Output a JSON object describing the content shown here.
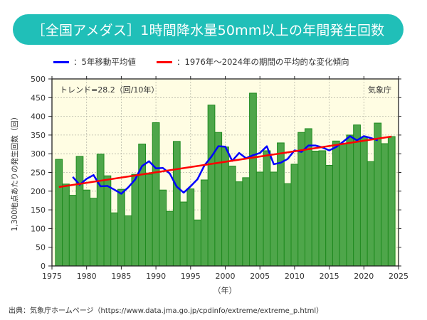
{
  "header": {
    "title": "［全国アメダス］1時間降水量50mm以上の年間発生回数"
  },
  "legend": {
    "moving_average": {
      "label": "：5年移動平均値",
      "color": "#0000ff"
    },
    "trend": {
      "label": "：1976年～2024年の期間の平均的な変化傾向",
      "color": "#ff0000"
    }
  },
  "source": "出典：気象庁ホームページ（https://www.data.jma.go.jp/cpdinfo/extreme/extreme_p.html）",
  "chart_data": {
    "type": "bar",
    "title": "［全国アメダス］1時間降水量50mm以上の年間発生回数",
    "xlabel": "（年）",
    "ylabel": "1,300地点あたりの発生回数（回）",
    "xlim": [
      1975,
      2025
    ],
    "ylim": [
      0,
      500
    ],
    "xticks": [
      "1975",
      "1980",
      "1985",
      "1990",
      "1995",
      "2000",
      "2005",
      "2010",
      "2015",
      "2020",
      "2025"
    ],
    "yticks": [
      "0",
      "50",
      "100",
      "150",
      "200",
      "250",
      "300",
      "350",
      "400",
      "450",
      "500"
    ],
    "grid": true,
    "annotation_trend": "トレンド=28.2（回/10年）",
    "annotation_agency": "気象庁",
    "bar_color": "#4ea64a",
    "bar_edge_color": "#1f8a1f",
    "plot_background": "#fffde3",
    "years": [
      1976,
      1977,
      1978,
      1979,
      1980,
      1981,
      1982,
      1983,
      1984,
      1985,
      1986,
      1987,
      1988,
      1989,
      1990,
      1991,
      1992,
      1993,
      1994,
      1995,
      1996,
      1997,
      1998,
      1999,
      2000,
      2001,
      2002,
      2003,
      2004,
      2005,
      2006,
      2007,
      2008,
      2009,
      2010,
      2011,
      2012,
      2013,
      2014,
      2015,
      2016,
      2017,
      2018,
      2019,
      2020,
      2021,
      2022,
      2023,
      2024
    ],
    "values": [
      285,
      219,
      189,
      293,
      203,
      181,
      299,
      241,
      142,
      205,
      134,
      245,
      326,
      245,
      383,
      203,
      146,
      333,
      171,
      206,
      123,
      230,
      430,
      357,
      318,
      267,
      225,
      236,
      462,
      251,
      308,
      251,
      329,
      220,
      272,
      357,
      367,
      307,
      308,
      269,
      334,
      328,
      350,
      377,
      345,
      279,
      382,
      327,
      346
    ],
    "moving_average": {
      "name": "5年移動平均値",
      "years": [
        1978,
        1979,
        1980,
        1981,
        1982,
        1983,
        1984,
        1985,
        1986,
        1987,
        1988,
        1989,
        1990,
        1991,
        1992,
        1993,
        1994,
        1995,
        1996,
        1997,
        1998,
        1999,
        2000,
        2001,
        2002,
        2003,
        2004,
        2005,
        2006,
        2007,
        2008,
        2009,
        2010,
        2011,
        2012,
        2013,
        2014,
        2015,
        2016,
        2017,
        2018,
        2019,
        2020,
        2021,
        2022
      ],
      "values": [
        238,
        217,
        233,
        243,
        213,
        214,
        204,
        193,
        210,
        231,
        267,
        280,
        261,
        262,
        247,
        212,
        196,
        213,
        232,
        269,
        292,
        320,
        319,
        281,
        302,
        288,
        296,
        302,
        320,
        272,
        276,
        286,
        309,
        305,
        322,
        322,
        317,
        309,
        318,
        332,
        347,
        336,
        347,
        342,
        336
      ]
    },
    "trend_line": {
      "name": "1976年～2024年の期間の平均的な変化傾向",
      "years": [
        1976,
        2024
      ],
      "values": [
        211,
        346
      ]
    }
  }
}
